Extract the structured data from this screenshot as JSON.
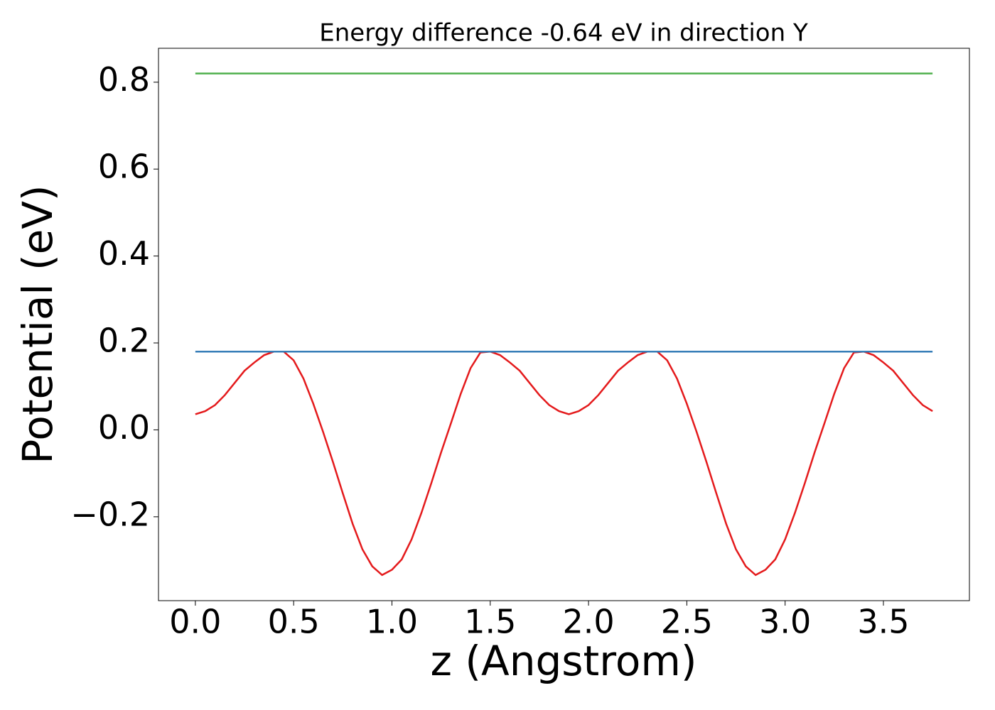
{
  "chart_data": {
    "type": "line",
    "title": "Energy difference -0.64 eV in direction Y",
    "xlabel": "z (Angstrom)",
    "ylabel": "Potential (eV)",
    "xlim": [
      -0.1875,
      3.9375
    ],
    "ylim": [
      -0.393,
      0.878
    ],
    "xticks": [
      {
        "value": 0,
        "label": "0.0"
      },
      0.5,
      {
        "value": 1,
        "label": "1.0"
      },
      1.5,
      {
        "value": 2,
        "label": "2.0"
      },
      2.5,
      {
        "value": 3,
        "label": "3.0"
      },
      3.5
    ],
    "yticks": [
      {
        "value": -0.2,
        "label": "−0.2"
      },
      {
        "value": 0,
        "label": "0.0"
      },
      0.2,
      0.4,
      0.6,
      0.8
    ],
    "series": [
      {
        "color": "#e41a1c",
        "x": [
          0,
          0.05,
          0.1,
          0.15,
          0.2,
          0.25,
          0.3,
          0.35,
          0.4,
          0.45,
          0.5,
          0.55,
          0.6,
          0.65,
          0.7,
          0.75,
          0.8,
          0.85,
          0.9,
          0.95,
          1.0,
          1.05,
          1.1,
          1.15,
          1.2,
          1.25,
          1.3,
          1.35,
          1.4,
          1.45,
          1.5,
          1.55,
          1.6,
          1.65,
          1.7,
          1.75,
          1.8,
          1.85,
          1.9,
          1.95,
          2.0,
          2.05,
          2.1,
          2.15,
          2.2,
          2.25,
          2.3,
          2.35,
          2.4,
          2.45,
          2.5,
          2.55,
          2.6,
          2.65,
          2.7,
          2.75,
          2.8,
          2.85,
          2.9,
          2.95,
          3.0,
          3.05,
          3.1,
          3.15,
          3.2,
          3.25,
          3.3,
          3.35,
          3.4,
          3.45,
          3.5,
          3.55,
          3.6,
          3.65,
          3.7,
          3.75
        ],
        "values": [
          0.036,
          0.043,
          0.057,
          0.08,
          0.108,
          0.136,
          0.155,
          0.172,
          0.18,
          0.18,
          0.16,
          0.118,
          0.06,
          -0.005,
          -0.074,
          -0.146,
          -0.216,
          -0.275,
          -0.314,
          -0.334,
          -0.322,
          -0.298,
          -0.252,
          -0.191,
          -0.123,
          -0.052,
          0.015,
          0.083,
          0.142,
          0.178,
          0.18,
          0.172,
          0.155,
          0.136,
          0.108,
          0.08,
          0.057,
          0.043,
          0.036,
          0.043,
          0.057,
          0.08,
          0.108,
          0.136,
          0.155,
          0.172,
          0.18,
          0.18,
          0.16,
          0.118,
          0.06,
          -0.005,
          -0.074,
          -0.146,
          -0.216,
          -0.275,
          -0.314,
          -0.334,
          -0.322,
          -0.298,
          -0.252,
          -0.191,
          -0.123,
          -0.052,
          0.015,
          0.083,
          0.142,
          0.178,
          0.18,
          0.172,
          0.155,
          0.136,
          0.108,
          0.08,
          0.057,
          0.043
        ]
      },
      {
        "color": "#377eb8",
        "x": [
          0,
          3.75
        ],
        "values": [
          0.18,
          0.18
        ]
      },
      {
        "color": "#4daf4a",
        "x": [
          0,
          3.75
        ],
        "values": [
          0.82,
          0.82
        ]
      }
    ]
  }
}
